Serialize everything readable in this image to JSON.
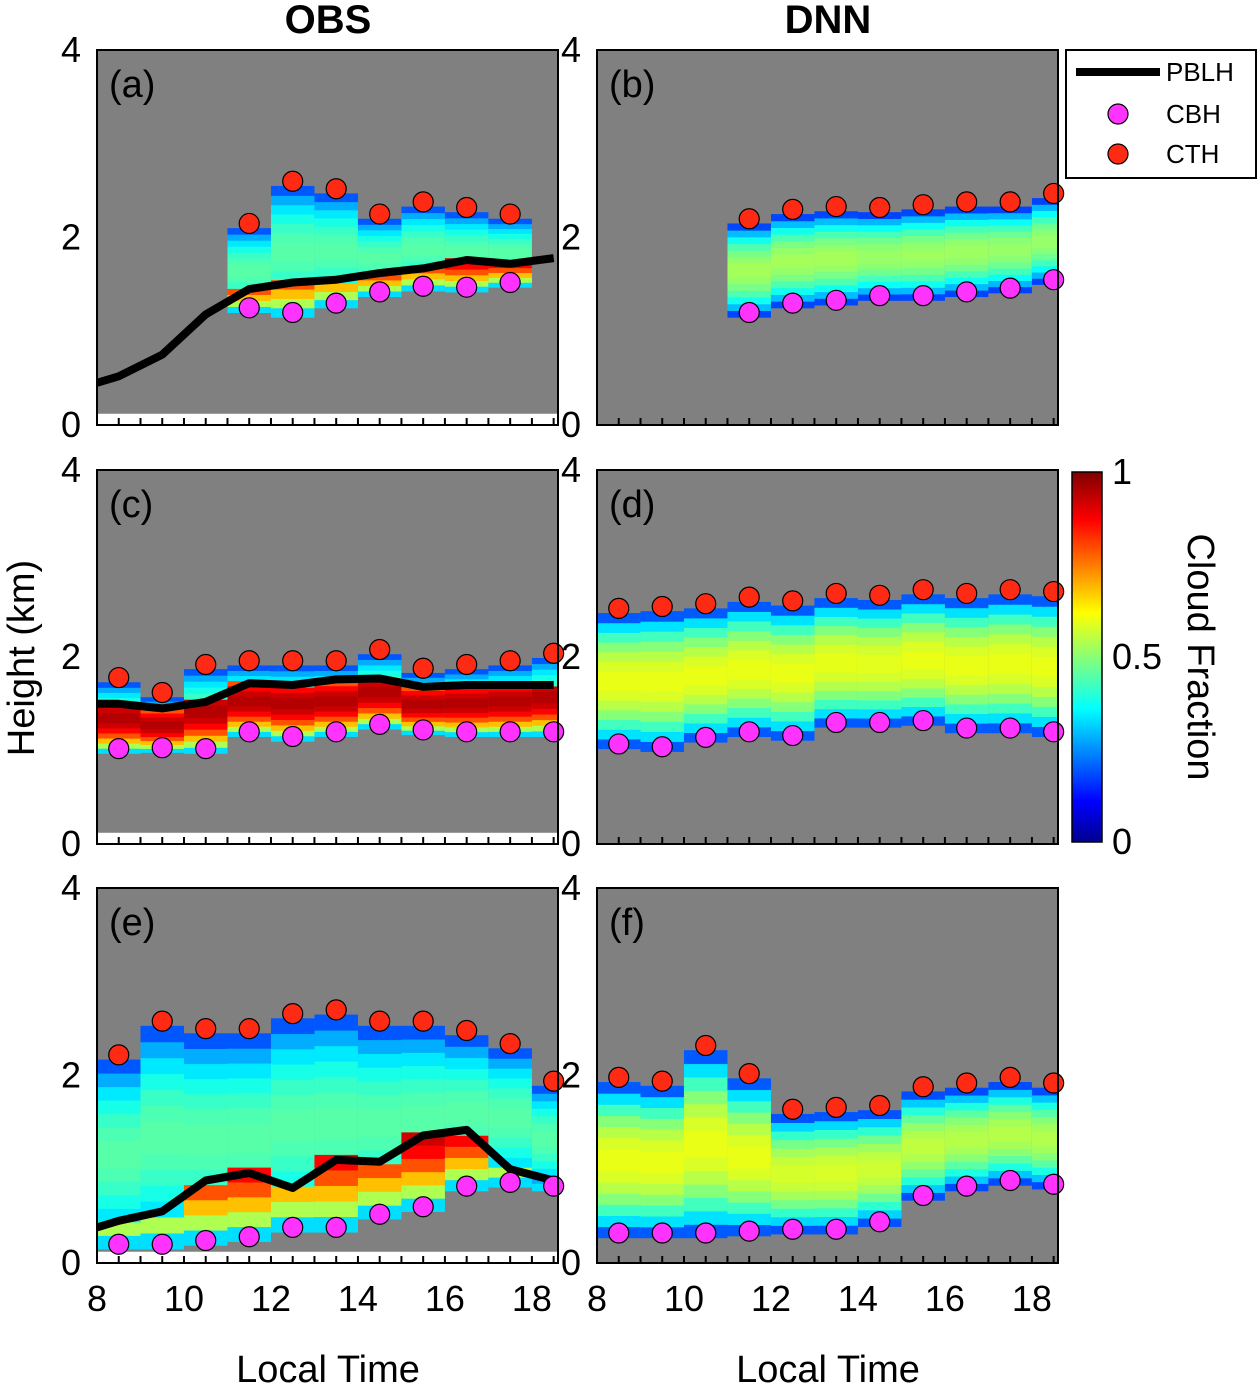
{
  "column_titles": [
    "OBS",
    "DNN"
  ],
  "ylabel": "Height (km)",
  "xlabel": "Local Time",
  "colorbar": {
    "label": "Cloud Fraction",
    "ticks": [
      "0",
      "0.5",
      "1"
    ],
    "range": [
      0,
      1
    ]
  },
  "legend": {
    "placement": "top-right",
    "entries": [
      {
        "label": "PBLH",
        "marker": "line",
        "color": "#000000"
      },
      {
        "label": "CBH",
        "marker": "circle",
        "color": "#ff33ff"
      },
      {
        "label": "CTH",
        "marker": "circle",
        "color": "#ff2a14"
      }
    ]
  },
  "colors": {
    "background": "#808080",
    "pblh": "#000000",
    "cbh": "#ff33ff",
    "cth": "#ff2a14"
  },
  "chart_data": [
    {
      "type": "heatmap",
      "panel": "(a)",
      "column": "OBS",
      "xlim": [
        8,
        18.6
      ],
      "ylim": [
        0,
        4
      ],
      "xticks": [
        8,
        10,
        12,
        14,
        16,
        18
      ],
      "yticks": [
        0,
        2,
        4
      ],
      "pblh": {
        "x": [
          8,
          8.5,
          9.5,
          10.5,
          11.5,
          12.5,
          13.5,
          14.5,
          15.5,
          16.5,
          17.5,
          18.5
        ],
        "y": [
          0.45,
          0.52,
          0.75,
          1.18,
          1.45,
          1.52,
          1.55,
          1.62,
          1.67,
          1.76,
          1.72,
          1.78
        ]
      },
      "cbh": {
        "x": [
          11.5,
          12.5,
          13.5,
          14.5,
          15.5,
          16.5,
          17.5
        ],
        "y": [
          1.25,
          1.2,
          1.3,
          1.42,
          1.48,
          1.47,
          1.52
        ]
      },
      "cth": {
        "x": [
          11.5,
          12.5,
          13.5,
          14.5,
          15.5,
          16.5,
          17.5
        ],
        "y": [
          2.15,
          2.6,
          2.52,
          2.25,
          2.38,
          2.32,
          2.25
        ]
      }
    },
    {
      "type": "heatmap",
      "panel": "(b)",
      "column": "DNN",
      "xlim": [
        8,
        18.6
      ],
      "ylim": [
        0,
        4
      ],
      "xticks": [
        8,
        10,
        12,
        14,
        16,
        18
      ],
      "yticks": [
        0,
        2,
        4
      ],
      "cbh": {
        "x": [
          11.5,
          12.5,
          13.5,
          14.5,
          15.5,
          16.5,
          17.5,
          18.5
        ],
        "y": [
          1.2,
          1.3,
          1.33,
          1.38,
          1.38,
          1.42,
          1.46,
          1.55
        ]
      },
      "cth": {
        "x": [
          11.5,
          12.5,
          13.5,
          14.5,
          15.5,
          16.5,
          17.5,
          18.5
        ],
        "y": [
          2.2,
          2.3,
          2.33,
          2.32,
          2.35,
          2.38,
          2.38,
          2.47
        ]
      }
    },
    {
      "type": "heatmap",
      "panel": "(c)",
      "column": "OBS",
      "xlim": [
        8,
        18.6
      ],
      "ylim": [
        0,
        4
      ],
      "xticks": [
        8,
        10,
        12,
        14,
        16,
        18
      ],
      "yticks": [
        0,
        2,
        4
      ],
      "pblh": {
        "x": [
          8,
          8.5,
          9.5,
          10.5,
          11.5,
          12.5,
          13.5,
          14.5,
          15.5,
          16.5,
          17.5,
          18.5
        ],
        "y": [
          1.5,
          1.5,
          1.45,
          1.52,
          1.72,
          1.7,
          1.76,
          1.77,
          1.68,
          1.7,
          1.7,
          1.7
        ]
      },
      "cbh": {
        "x": [
          8.5,
          9.5,
          10.5,
          11.5,
          12.5,
          13.5,
          14.5,
          15.5,
          16.5,
          17.5,
          18.5
        ],
        "y": [
          1.02,
          1.03,
          1.02,
          1.2,
          1.15,
          1.2,
          1.28,
          1.22,
          1.2,
          1.2,
          1.2
        ]
      },
      "cth": {
        "x": [
          8.5,
          9.5,
          10.5,
          11.5,
          12.5,
          13.5,
          14.5,
          15.5,
          16.5,
          17.5,
          18.5
        ],
        "y": [
          1.78,
          1.62,
          1.92,
          1.96,
          1.96,
          1.96,
          2.08,
          1.88,
          1.92,
          1.96,
          2.04
        ]
      }
    },
    {
      "type": "heatmap",
      "panel": "(d)",
      "column": "DNN",
      "xlim": [
        8,
        18.6
      ],
      "ylim": [
        0,
        4
      ],
      "xticks": [
        8,
        10,
        12,
        14,
        16,
        18
      ],
      "yticks": [
        0,
        2,
        4
      ],
      "cbh": {
        "x": [
          8.5,
          9.5,
          10.5,
          11.5,
          12.5,
          13.5,
          14.5,
          15.5,
          16.5,
          17.5,
          18.5
        ],
        "y": [
          1.07,
          1.04,
          1.14,
          1.2,
          1.16,
          1.3,
          1.3,
          1.32,
          1.24,
          1.24,
          1.2
        ]
      },
      "cth": {
        "x": [
          8.5,
          9.5,
          10.5,
          11.5,
          12.5,
          13.5,
          14.5,
          15.5,
          16.5,
          17.5,
          18.5
        ],
        "y": [
          2.52,
          2.54,
          2.57,
          2.64,
          2.6,
          2.68,
          2.66,
          2.72,
          2.68,
          2.72,
          2.7
        ]
      }
    },
    {
      "type": "heatmap",
      "panel": "(e)",
      "column": "OBS",
      "xlim": [
        8,
        18.6
      ],
      "ylim": [
        0,
        4
      ],
      "xticks": [
        8,
        10,
        12,
        14,
        16,
        18
      ],
      "yticks": [
        0,
        2,
        4
      ],
      "pblh": {
        "x": [
          8,
          8.5,
          9.5,
          10.5,
          11.5,
          12.5,
          13.5,
          14.5,
          15.5,
          16.5,
          17.5,
          18.5
        ],
        "y": [
          0.38,
          0.45,
          0.55,
          0.88,
          0.96,
          0.8,
          1.1,
          1.08,
          1.36,
          1.42,
          1.0,
          0.88
        ]
      },
      "cbh": {
        "x": [
          8.5,
          9.5,
          10.5,
          11.5,
          12.5,
          13.5,
          14.5,
          15.5,
          16.5,
          17.5,
          18.5
        ],
        "y": [
          0.2,
          0.2,
          0.24,
          0.28,
          0.38,
          0.38,
          0.52,
          0.6,
          0.82,
          0.86,
          0.82
        ]
      },
      "cth": {
        "x": [
          8.5,
          9.5,
          10.5,
          11.5,
          12.5,
          13.5,
          14.5,
          15.5,
          16.5,
          17.5,
          18.5
        ],
        "y": [
          2.22,
          2.58,
          2.5,
          2.5,
          2.66,
          2.7,
          2.58,
          2.58,
          2.48,
          2.34,
          1.94
        ]
      }
    },
    {
      "type": "heatmap",
      "panel": "(f)",
      "column": "DNN",
      "xlim": [
        8,
        18.6
      ],
      "ylim": [
        0,
        4
      ],
      "xticks": [
        8,
        10,
        12,
        14,
        16,
        18
      ],
      "yticks": [
        0,
        2,
        4
      ],
      "cbh": {
        "x": [
          8.5,
          9.5,
          10.5,
          11.5,
          12.5,
          13.5,
          14.5,
          15.5,
          16.5,
          17.5,
          18.5
        ],
        "y": [
          0.32,
          0.32,
          0.32,
          0.34,
          0.36,
          0.36,
          0.44,
          0.72,
          0.82,
          0.88,
          0.84
        ]
      },
      "cth": {
        "x": [
          8.5,
          9.5,
          10.5,
          11.5,
          12.5,
          13.5,
          14.5,
          15.5,
          16.5,
          17.5,
          18.5
        ],
        "y": [
          1.98,
          1.94,
          2.32,
          2.02,
          1.64,
          1.66,
          1.68,
          1.88,
          1.92,
          1.98,
          1.92
        ]
      }
    }
  ]
}
